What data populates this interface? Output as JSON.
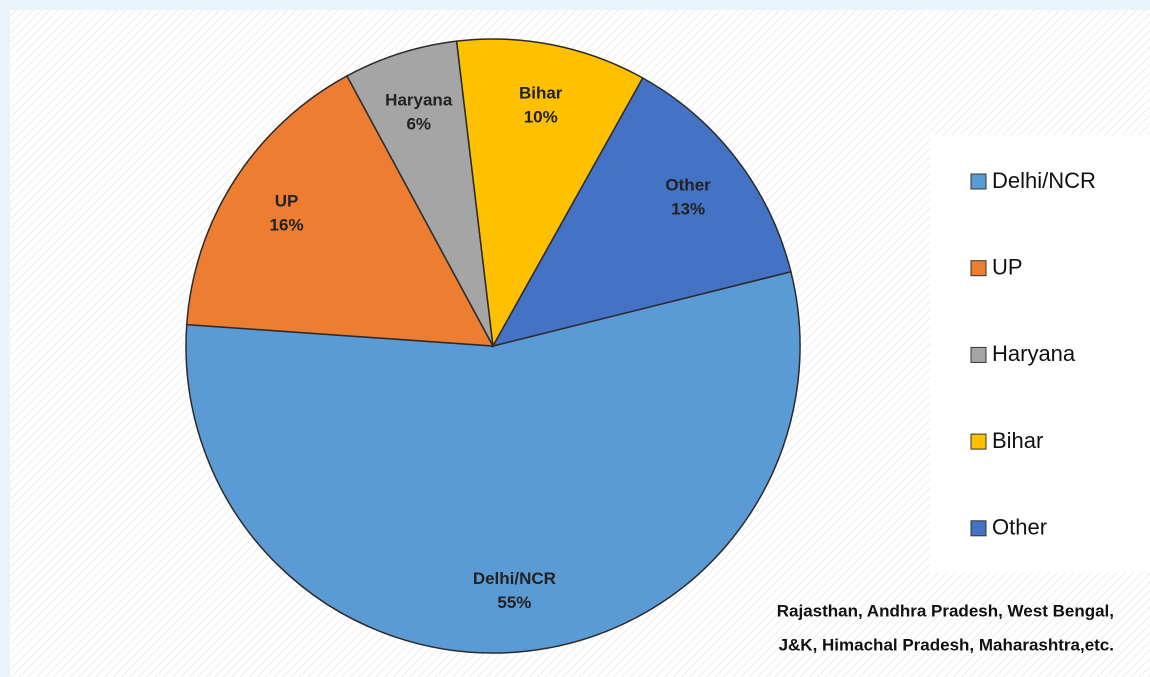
{
  "chart_data": {
    "type": "pie",
    "categories": [
      "Delhi/NCR",
      "UP",
      "Haryana",
      "Bihar",
      "Other"
    ],
    "values": [
      55,
      16,
      6,
      10,
      13
    ],
    "value_labels": [
      "55%",
      "16%",
      "6%",
      "10%",
      "13%"
    ],
    "colors": [
      "#5b9bd5",
      "#ed7d31",
      "#a5a5a5",
      "#ffc000",
      "#4472c4"
    ],
    "legend": "right",
    "annotations": [
      "Rajasthan, Andhra Pradesh, West Bengal,",
      "J&K, Himachal Pradesh, Maharashtra,etc."
    ]
  }
}
